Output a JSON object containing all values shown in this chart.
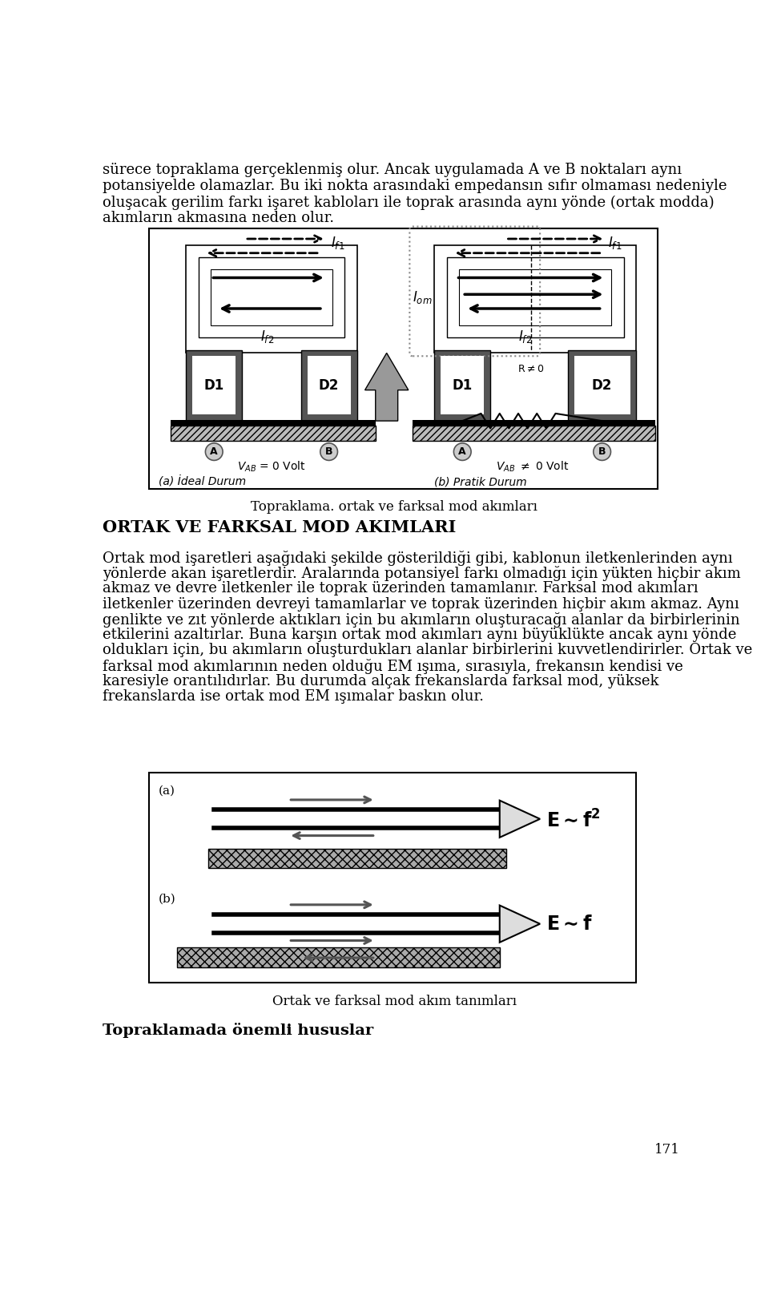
{
  "page_width": 9.6,
  "page_height": 16.17,
  "bg_color": "#ffffff",
  "text_color": "#000000",
  "para1": "sürece topraklama gerçeklenmiş olur. Ancak uygulamada A ve B noktaları aynı",
  "para1b": "potansiyelde olamazlar. Bu iki nokta arasındaki empedansın sıfır olmaması nedeniyle",
  "para1c": "oluşacak gerilim farkı işaret kabloları ile toprak arasında aynı yönde (ortak modda)",
  "para1d": "akımların akmasına neden olur.",
  "fig1_caption": "Topraklama. ortak ve farksal mod akımları",
  "section_title": "ORTAK VE FARKSAL MOD AKIMLARI",
  "body_text": [
    "Ortak mod işaretleri aşağıdaki şekilde gösterildiği gibi, kablonun iletkenlerinden aynı",
    "yönlerde akan işaretlerdir. Aralarında potansiyel farkı olmadığı için yükten hiçbir akım",
    "akmaz ve devre iletkenler ile toprak üzerinden tamamlanır. Farksal mod akımları",
    "iletkenler üzerinden devreyi tamamlarlar ve toprak üzerinden hiçbir akım akmaz. Aynı",
    "genlikte ve zıt yönlerde aktıkları için bu akımların oluşturacağı alanlar da birbirlerinin",
    "etkilerini azaltırlar. Buna karşın ortak mod akımları aynı büyüklükte ancak aynı yönde",
    "oldukları için, bu akımların oluşturdukları alanlar birbirlerini kuvvetlendirirler. Ortak ve",
    "farksal mod akımlarının neden olduğu EM ışıma, sırasıyla, frekansın kendisi ve",
    "karesiyle orantılıdırlar. Bu durumda alçak frekanslarda farksal mod, yüksek",
    "frekanslarda ise ortak mod EM ışımalar baskın olur."
  ],
  "fig2_caption": "Ortak ve farksal mod akım tanımları",
  "footer_title": "Topraklamada önemli hususlar",
  "page_num": "171"
}
